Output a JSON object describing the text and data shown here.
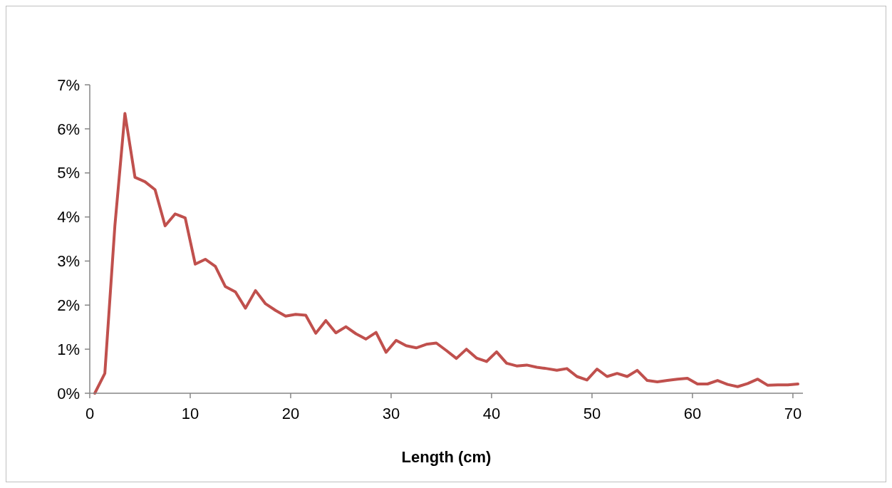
{
  "chart_data": {
    "type": "line",
    "xlabel": "Length (cm)",
    "x": [
      0.5,
      1.5,
      2.5,
      3.5,
      4.5,
      5.5,
      6.5,
      7.5,
      8.5,
      9.5,
      10.5,
      11.5,
      12.5,
      13.5,
      14.5,
      15.5,
      16.5,
      17.5,
      18.5,
      19.5,
      20.5,
      21.5,
      22.5,
      23.5,
      24.5,
      25.5,
      26.5,
      27.5,
      28.5,
      29.5,
      30.5,
      31.5,
      32.5,
      33.5,
      34.5,
      35.5,
      36.5,
      37.5,
      38.5,
      39.5,
      40.5,
      41.5,
      42.5,
      43.5,
      44.5,
      45.5,
      46.5,
      47.5,
      48.5,
      49.5,
      50.5,
      51.5,
      52.5,
      53.5,
      54.5,
      55.5,
      56.5,
      57.5,
      58.5,
      59.5,
      60.5,
      61.5,
      62.5,
      63.5,
      64.5,
      65.5,
      66.5,
      67.5,
      68.5,
      69.5,
      70.5
    ],
    "series": [
      {
        "color": "#c0504d",
        "values": [
          0,
          0.45,
          3.8,
          6.35,
          4.9,
          4.8,
          4.62,
          3.8,
          4.07,
          3.98,
          2.93,
          3.04,
          2.88,
          2.42,
          2.3,
          1.93,
          2.33,
          2.03,
          1.88,
          1.75,
          1.79,
          1.77,
          1.36,
          1.65,
          1.37,
          1.51,
          1.35,
          1.23,
          1.38,
          0.93,
          1.2,
          1.08,
          1.03,
          1.11,
          1.14,
          0.97,
          0.79,
          1.0,
          0.8,
          0.72,
          0.94,
          0.68,
          0.62,
          0.64,
          0.59,
          0.56,
          0.52,
          0.56,
          0.38,
          0.3,
          0.55,
          0.38,
          0.45,
          0.38,
          0.52,
          0.29,
          0.26,
          0.29,
          0.32,
          0.34,
          0.21,
          0.21,
          0.29,
          0.2,
          0.15,
          0.22,
          0.32,
          0.18,
          0.19,
          0.19,
          0.21
        ]
      }
    ],
    "xlim": [
      0,
      71
    ],
    "xticks": [
      0,
      10,
      20,
      30,
      40,
      50,
      60,
      70
    ],
    "ylim": [
      0,
      7
    ],
    "yticks": [
      {
        "value": 0,
        "label": "0%"
      },
      {
        "value": 1,
        "label": "1%"
      },
      {
        "value": 2,
        "label": "2%"
      },
      {
        "value": 3,
        "label": "3%"
      },
      {
        "value": 4,
        "label": "4%"
      },
      {
        "value": 5,
        "label": "5%"
      },
      {
        "value": 6,
        "label": "6%"
      },
      {
        "value": 7,
        "label": "7%"
      }
    ],
    "grid": false,
    "marker": "none",
    "line_style": "solid"
  }
}
